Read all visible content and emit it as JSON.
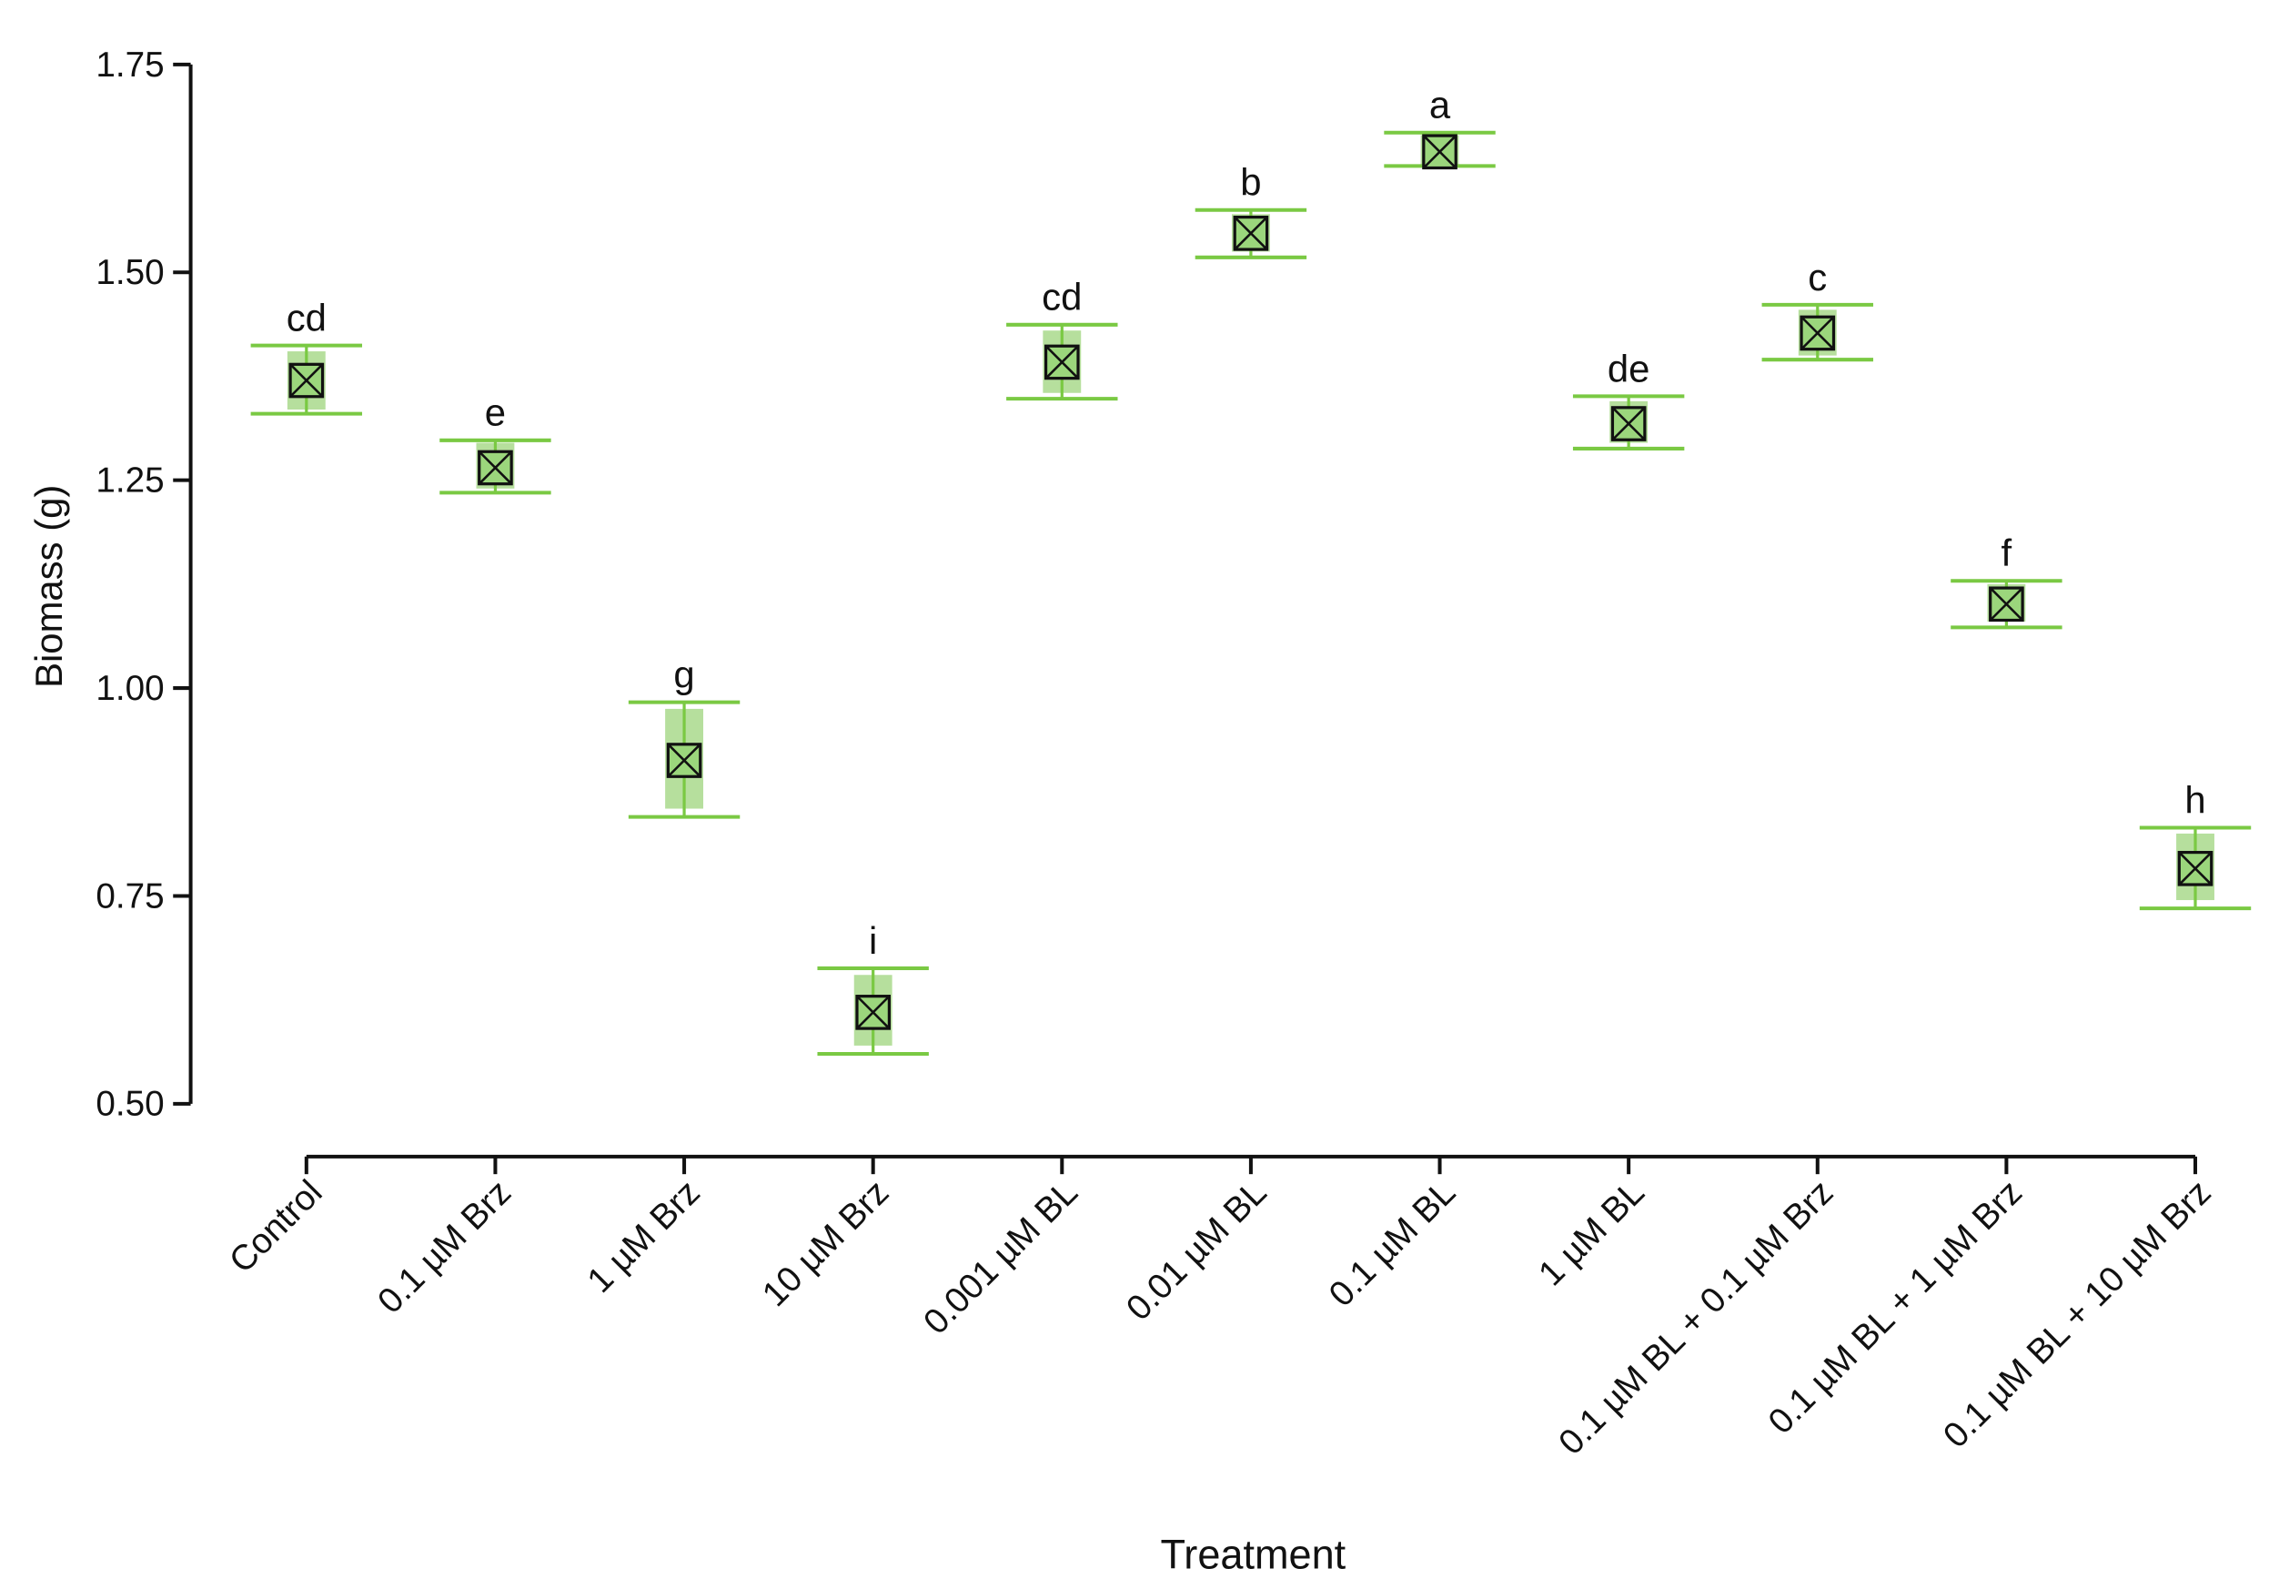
{
  "chart_data": {
    "type": "point-errorbar",
    "x_label": "Treatment",
    "y_label": "Biomass (g)",
    "categories": [
      "Control",
      "0.1 µM Brz",
      "1 µM Brz",
      "10 µM Brz",
      "0.001 µM BL",
      "0.01 µM BL",
      "0.1 µM BL",
      "1 µM BL",
      "0.1 µM BL + 0.1 µM Brz",
      "0.1 µM BL + 1 µM Brz",
      "0.1 µM BL + 10 µM Brz"
    ],
    "values": [
      1.37,
      1.265,
      0.913,
      0.61,
      1.392,
      1.547,
      1.645,
      1.318,
      1.427,
      1.101,
      0.783
    ],
    "lower": [
      1.33,
      1.235,
      0.845,
      0.56,
      1.348,
      1.518,
      1.628,
      1.288,
      1.395,
      1.073,
      0.735
    ],
    "upper": [
      1.412,
      1.298,
      0.983,
      0.663,
      1.437,
      1.575,
      1.668,
      1.351,
      1.461,
      1.129,
      0.832
    ],
    "box_lower": [
      1.335,
      1.24,
      0.855,
      0.57,
      1.355,
      1.525,
      1.63,
      1.295,
      1.4,
      1.08,
      0.745
    ],
    "box_upper": [
      1.405,
      1.295,
      0.975,
      0.655,
      1.43,
      1.57,
      1.665,
      1.345,
      1.455,
      1.125,
      0.825
    ],
    "letters": [
      "cd",
      "e",
      "g",
      "i",
      "cd",
      "b",
      "a",
      "de",
      "c",
      "f",
      "h"
    ],
    "color": "#7ac943",
    "box_color": "#a9d98c",
    "marker_color": "#9bd67c",
    "ylim": [
      0.5,
      1.75
    ],
    "yticks": [
      {
        "value": 0.5,
        "label": "0.50"
      },
      0.75,
      {
        "value": 1.0,
        "label": "1.00"
      },
      1.25,
      {
        "value": 1.5,
        "label": "1.50"
      },
      1.75
    ]
  }
}
